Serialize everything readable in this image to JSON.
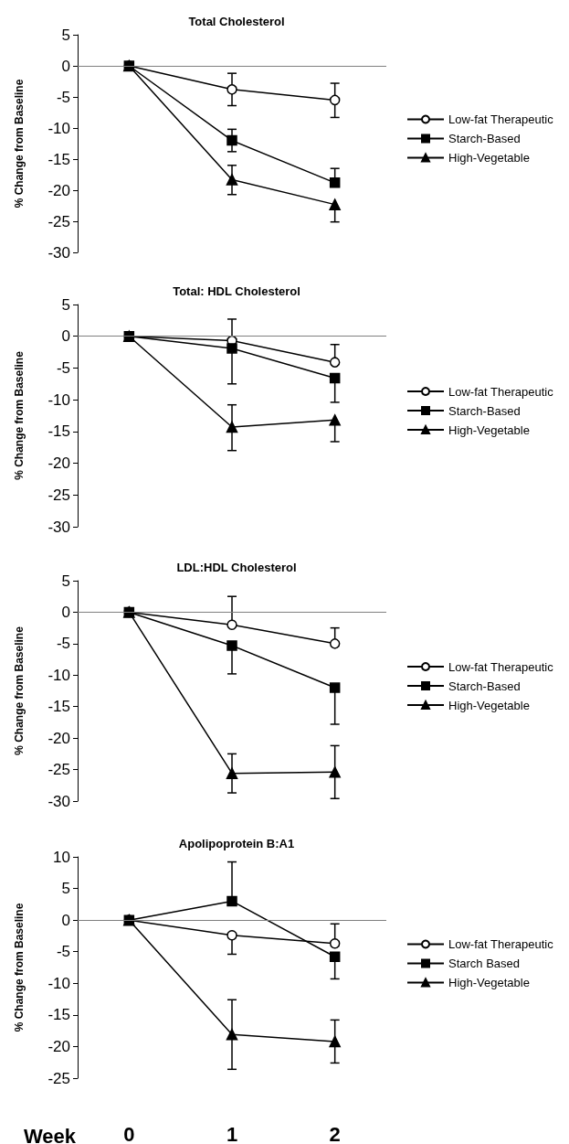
{
  "chart_data": [
    {
      "type": "line",
      "title": "Total Cholesterol",
      "ylabel": "% Change from Baseline",
      "categories": [
        "0",
        "1",
        "2"
      ],
      "ylim": [
        -30,
        5
      ],
      "yticks": [
        -30,
        -25,
        -20,
        -15,
        -10,
        -5,
        0,
        5
      ],
      "tick_labels": "y",
      "grid": false,
      "legend": "right",
      "line_style": "solid",
      "ref_lines": [
        {
          "axis": "y",
          "value": 0,
          "color": "#808080"
        }
      ],
      "series": [
        {
          "name": "Low-fat Therapeutic",
          "color": "#000000",
          "marker": "circle",
          "values": [
            0,
            -3.8,
            -5.5
          ],
          "errors": [
            null,
            [
              -6.4,
              -1.2
            ],
            [
              -8.3,
              -2.8
            ]
          ]
        },
        {
          "name": "Starch-Based",
          "color": "#000000",
          "marker": "square",
          "values": [
            0,
            -12,
            -18.8
          ],
          "errors": [
            null,
            [
              -13.8,
              -10.2
            ],
            [
              -18.8,
              -16.5
            ]
          ]
        },
        {
          "name": "High-Vegetable",
          "color": "#000000",
          "marker": "triangle",
          "values": [
            0,
            -18.3,
            -22.3
          ],
          "errors": [
            null,
            [
              -20.7,
              -16
            ],
            [
              -25.1,
              -22.3
            ]
          ]
        }
      ]
    },
    {
      "type": "line",
      "title": "Total: HDL Cholesterol",
      "ylabel": "% Change from Baseline",
      "categories": [
        "0",
        "1",
        "2"
      ],
      "ylim": [
        -30,
        5
      ],
      "yticks": [
        -30,
        -25,
        -20,
        -15,
        -10,
        -5,
        0,
        5
      ],
      "tick_labels": "y",
      "grid": false,
      "legend": "right",
      "line_style": "solid",
      "ref_lines": [
        {
          "axis": "y",
          "value": 0,
          "color": "#808080"
        }
      ],
      "series": [
        {
          "name": "Low-fat Therapeutic",
          "color": "#000000",
          "marker": "circle",
          "values": [
            0,
            -0.7,
            -4.1
          ],
          "errors": [
            null,
            [
              -0.7,
              2.7
            ],
            [
              -4.1,
              -1.3
            ]
          ]
        },
        {
          "name": "Starch-Based",
          "color": "#000000",
          "marker": "square",
          "values": [
            0,
            -1.9,
            -6.6
          ],
          "errors": [
            null,
            [
              -7.5,
              -1.9
            ],
            [
              -10.4,
              -6.6
            ]
          ]
        },
        {
          "name": "High-Vegetable",
          "color": "#000000",
          "marker": "triangle",
          "values": [
            0,
            -14.3,
            -13.2
          ],
          "errors": [
            null,
            [
              -18,
              -10.8
            ],
            [
              -16.6,
              -13.2
            ]
          ]
        }
      ]
    },
    {
      "type": "line",
      "title": "LDL:HDL Cholesterol",
      "ylabel": "% Change from Baseline",
      "categories": [
        "0",
        "1",
        "2"
      ],
      "ylim": [
        -30,
        5
      ],
      "yticks": [
        -30,
        -25,
        -20,
        -15,
        -10,
        -5,
        0,
        5
      ],
      "tick_labels": "y",
      "grid": false,
      "legend": "right",
      "line_style": "solid",
      "ref_lines": [
        {
          "axis": "y",
          "value": 0,
          "color": "#808080"
        }
      ],
      "series": [
        {
          "name": "Low-fat Therapeutic",
          "color": "#000000",
          "marker": "circle",
          "values": [
            0,
            -2,
            -5
          ],
          "errors": [
            null,
            [
              -2,
              2.5
            ],
            [
              -5,
              -2.5
            ]
          ]
        },
        {
          "name": "Starch-Based",
          "color": "#000000",
          "marker": "square",
          "values": [
            0,
            -5.3,
            -12
          ],
          "errors": [
            null,
            [
              -9.8,
              -5.3
            ],
            [
              -17.8,
              -12
            ]
          ]
        },
        {
          "name": "High-Vegetable",
          "color": "#000000",
          "marker": "triangle",
          "values": [
            0,
            -25.6,
            -25.4
          ],
          "errors": [
            null,
            [
              -28.7,
              -22.5
            ],
            [
              -29.6,
              -21.2
            ]
          ]
        }
      ]
    },
    {
      "type": "line",
      "title": "Apolipoprotein B:A1",
      "ylabel": "% Change from Baseline",
      "xlabel": "Week",
      "categories": [
        "0",
        "1",
        "2"
      ],
      "ylim": [
        -25,
        10
      ],
      "yticks": [
        -25,
        -20,
        -15,
        -10,
        -5,
        0,
        5,
        10
      ],
      "grid": false,
      "legend": "right",
      "line_style": "solid",
      "ref_lines": [
        {
          "axis": "y",
          "value": 0,
          "color": "#808080"
        }
      ],
      "series": [
        {
          "name": "Low-fat Therapeutic",
          "color": "#000000",
          "marker": "circle",
          "values": [
            0,
            -2.4,
            -3.7
          ],
          "errors": [
            null,
            [
              -5.4,
              -2.4
            ],
            [
              -3.7,
              -0.6
            ]
          ]
        },
        {
          "name": "Starch Based",
          "color": "#000000",
          "marker": "square",
          "values": [
            0,
            3,
            -5.8
          ],
          "errors": [
            null,
            [
              3,
              9.2
            ],
            [
              -9.3,
              -5.8
            ]
          ]
        },
        {
          "name": "High-Vegetable",
          "color": "#000000",
          "marker": "triangle",
          "values": [
            0,
            -18.1,
            -19.2
          ],
          "errors": [
            null,
            [
              -23.6,
              -12.6
            ],
            [
              -22.6,
              -15.8
            ]
          ]
        }
      ]
    }
  ]
}
